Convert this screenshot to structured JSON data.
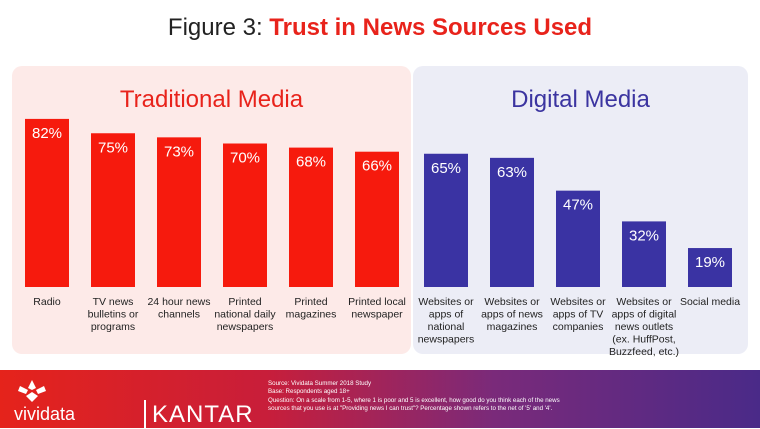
{
  "header": {
    "title_prefix": "Figure 3: ",
    "title_accent": "Trust in News Sources Used"
  },
  "colors": {
    "traditional": "#f61a0d",
    "digital": "#3a33a3",
    "accent": "#e8231b"
  },
  "chart_data": {
    "type": "bar",
    "title": "Figure 3: Trust in News Sources Used",
    "unit": "%",
    "ylim": [
      0,
      100
    ],
    "grid": false,
    "groups": [
      {
        "name": "Traditional Media",
        "color": "#f61a0d",
        "categories": [
          [
            "Radio"
          ],
          [
            "TV news",
            "bulletins or",
            "programs"
          ],
          [
            "24 hour news",
            "channels"
          ],
          [
            "Printed",
            "national daily",
            "newspapers"
          ],
          [
            "Printed",
            "magazines"
          ],
          [
            "Printed local",
            "newspaper"
          ]
        ],
        "values": [
          82,
          75,
          73,
          70,
          68,
          66
        ]
      },
      {
        "name": "Digital Media",
        "color": "#3a33a3",
        "categories": [
          [
            "Websites or",
            "apps of",
            "national",
            "newspapers"
          ],
          [
            "Websites or",
            "apps of news",
            "magazines"
          ],
          [
            "Websites or",
            "apps of TV",
            "companies"
          ],
          [
            "Websites or",
            "apps of digital",
            "news outlets",
            "(ex. HuffPost,",
            "Buzzfeed, etc.)"
          ],
          [
            "Social media"
          ]
        ],
        "values": [
          65,
          63,
          47,
          32,
          19
        ]
      }
    ]
  },
  "footer": {
    "brand": "vividata",
    "partner": "KANTAR",
    "notes": [
      "Source: Vividata Summer 2018 Study",
      "Base: Respondents aged 18+",
      "Question: On a scale from 1-5, where 1 is poor and 5 is excellent, how good do you think each of the news",
      "sources that you use is at \"Providing news I can trust\"? Percentage shown refers to the net of '5' and '4'."
    ]
  }
}
